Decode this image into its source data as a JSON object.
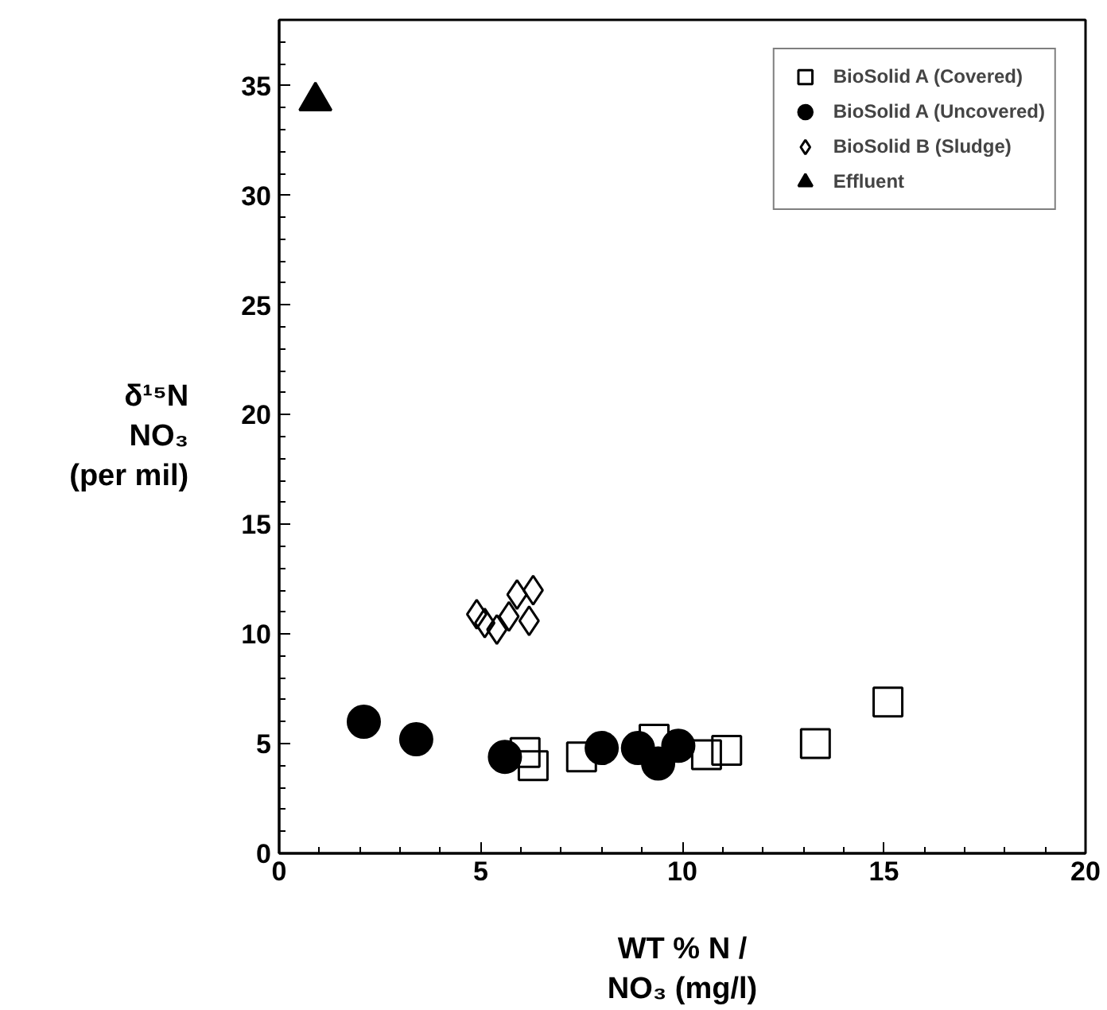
{
  "chart_data": {
    "type": "scatter",
    "xlabel": "WT % N /\nNO₃ (mg/l)",
    "ylabel": "δ¹⁵N\nNO₃\n(per mil)",
    "xlim": [
      0,
      20
    ],
    "ylim": [
      0,
      38
    ],
    "xticks": [
      0,
      5,
      10,
      15,
      20
    ],
    "yticks": [
      0,
      5,
      10,
      15,
      20,
      25,
      30,
      35
    ],
    "grid": false,
    "legend": "top right",
    "series": [
      {
        "name": "BioSolid A (Covered)",
        "color": "#000000",
        "marker": "square",
        "x": [
          6.1,
          6.3,
          7.5,
          9.3,
          10.6,
          11.1,
          13.3,
          15.1
        ],
        "values": [
          4.6,
          4.0,
          4.4,
          5.2,
          4.5,
          4.7,
          5.0,
          6.9
        ]
      },
      {
        "name": "BioSolid A (Uncovered)",
        "color": "#000000",
        "marker": "circle",
        "x": [
          2.1,
          3.4,
          5.6,
          8.0,
          8.9,
          9.4,
          9.9
        ],
        "values": [
          6.0,
          5.2,
          4.4,
          4.8,
          4.8,
          4.1,
          4.9
        ]
      },
      {
        "name": "BioSolid B (Sludge)",
        "color": "#000000",
        "marker": "diamond",
        "x": [
          4.9,
          5.1,
          5.4,
          5.7,
          5.9,
          6.3,
          6.2
        ],
        "values": [
          10.9,
          10.5,
          10.2,
          10.8,
          11.8,
          12.0,
          10.6
        ]
      },
      {
        "name": "Effluent",
        "color": "#000000",
        "marker": "triangle",
        "x": [
          0.9
        ],
        "values": [
          34.3
        ]
      }
    ]
  }
}
